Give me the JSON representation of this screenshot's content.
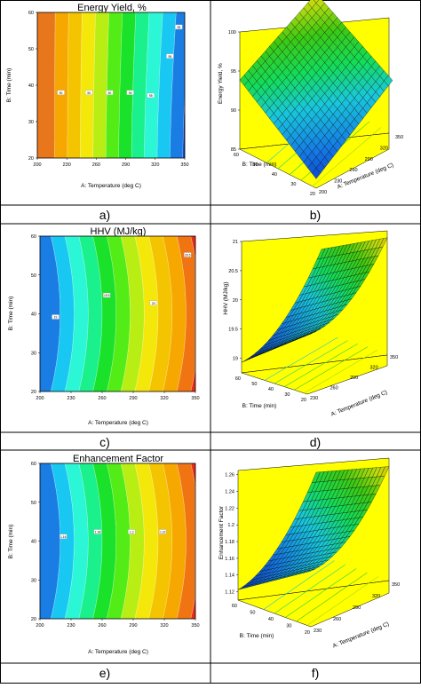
{
  "figure": {
    "panel_labels": [
      "a)",
      "b)",
      "c)",
      "d)",
      "e)",
      "f)"
    ]
  },
  "chart_data": [
    {
      "panel": "a)",
      "type": "contour",
      "title": "Energy Yield, %",
      "xlabel": "A: Temperature (deg C)",
      "ylabel": "B: Time (min)",
      "xlim": [
        200,
        350
      ],
      "ylim": [
        20,
        60
      ],
      "x_ticks": [
        "200",
        "230",
        "260",
        "290",
        "320",
        "350"
      ],
      "y_ticks": [
        "20",
        "30",
        "40",
        "50",
        "60"
      ],
      "contour_labels": [
        "90",
        "95"
      ],
      "colors": [
        "#e8771b",
        "#f7a800",
        "#f4c400",
        "#f4e80a",
        "#b8ee14",
        "#54ec16",
        "#1ae22a",
        "#1af08c",
        "#2bf6d6",
        "#19c8f2",
        "#1a7de3",
        "#0f36c7"
      ]
    },
    {
      "panel": "b)",
      "type": "surface",
      "zlabel": "Energy Yield, %",
      "xlabel": "A: Temperature (deg C)",
      "ylabel": "B: Time (min)",
      "z_ticks": [
        "85",
        "90",
        "95",
        "100"
      ],
      "x_ticks": [
        "200",
        "230",
        "260",
        "290",
        "320",
        "350"
      ],
      "y_ticks": [
        "20",
        "30",
        "40",
        "50",
        "60"
      ],
      "zlim": [
        85,
        100
      ]
    },
    {
      "panel": "c)",
      "type": "contour",
      "title": "HHV (MJ/kg)",
      "xlabel": "A: Temperature (deg C)",
      "ylabel": "B: Time (min)",
      "xlim": [
        200,
        350
      ],
      "ylim": [
        20,
        60
      ],
      "x_ticks": [
        "200",
        "230",
        "260",
        "290",
        "320",
        "350"
      ],
      "y_ticks": [
        "20",
        "30",
        "40",
        "50",
        "60"
      ],
      "contour_labels": [
        "19",
        "19.5",
        "20",
        "20.5"
      ],
      "colors": [
        "#1a7de3",
        "#19c8f2",
        "#2bf6d6",
        "#1af08c",
        "#1ae22a",
        "#54ec16",
        "#b8ee14",
        "#f4e80a",
        "#f4c400",
        "#f7a800",
        "#f07512",
        "#e82d14"
      ]
    },
    {
      "panel": "d)",
      "type": "surface",
      "zlabel": "HHV (MJ/kg)",
      "xlabel": "A: Temperature (deg C)",
      "ylabel": "B: Time (min)",
      "z_ticks": [
        "19",
        "19.5",
        "20",
        "20.5",
        "21"
      ],
      "x_ticks": [
        "230",
        "260",
        "290",
        "320",
        "350"
      ],
      "y_ticks": [
        "20",
        "30",
        "40",
        "50",
        "60"
      ],
      "zlim": [
        18.75,
        21
      ]
    },
    {
      "panel": "e)",
      "type": "contour",
      "title": "Enhancement Factor",
      "xlabel": "A: Temperature (deg C)",
      "ylabel": "B: Time (min)",
      "xlim": [
        200,
        350
      ],
      "ylim": [
        20,
        60
      ],
      "x_ticks": [
        "200",
        "230",
        "260",
        "290",
        "320",
        "350"
      ],
      "y_ticks": [
        "20",
        "30",
        "40",
        "50",
        "60"
      ],
      "contour_labels": [
        "1.16",
        "1.18",
        "1.2",
        "1.22"
      ],
      "colors": [
        "#1a7de3",
        "#19c8f2",
        "#2bf6d6",
        "#1af08c",
        "#1ae22a",
        "#54ec16",
        "#b8ee14",
        "#f4e80a",
        "#f4c400",
        "#f7a800",
        "#f07512",
        "#e82d14"
      ]
    },
    {
      "panel": "f)",
      "type": "surface",
      "zlabel": "Enhancement Factor",
      "xlabel": "A: Temperature (deg C)",
      "ylabel": "B: Time (min)",
      "z_ticks": [
        "1.12",
        "1.14",
        "1.16",
        "1.18",
        "1.2",
        "1.22",
        "1.24",
        "1.26"
      ],
      "x_ticks": [
        "230",
        "260",
        "290",
        "320",
        "350"
      ],
      "y_ticks": [
        "20",
        "30",
        "40",
        "50",
        "60"
      ],
      "zlim": [
        1.11,
        1.265
      ]
    }
  ]
}
